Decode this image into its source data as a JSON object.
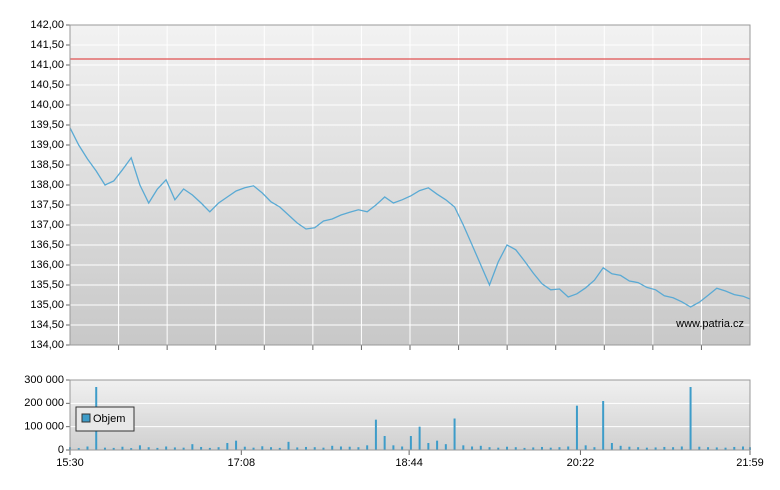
{
  "chart_data": [
    {
      "type": "line",
      "watermark": "www.patria.cz",
      "reference_line": {
        "value": 141.15,
        "color": "#e05050"
      },
      "x": [
        "15:30",
        "15:35",
        "15:40",
        "15:45",
        "15:50",
        "15:55",
        "16:00",
        "16:05",
        "16:10",
        "16:15",
        "16:20",
        "16:25",
        "16:30",
        "16:35",
        "16:40",
        "16:45",
        "16:50",
        "16:55",
        "17:00",
        "17:05",
        "17:10",
        "17:15",
        "17:20",
        "17:25",
        "17:30",
        "17:35",
        "17:40",
        "17:45",
        "17:50",
        "17:55",
        "18:00",
        "18:05",
        "18:10",
        "18:15",
        "18:20",
        "18:25",
        "18:30",
        "18:35",
        "18:40",
        "18:45",
        "18:50",
        "18:55",
        "19:00",
        "19:05",
        "19:10",
        "19:15",
        "19:20",
        "19:25",
        "19:30",
        "19:35",
        "19:40",
        "19:45",
        "19:50",
        "19:55",
        "20:00",
        "20:05",
        "20:10",
        "20:15",
        "20:20",
        "20:25",
        "20:30",
        "20:35",
        "20:40",
        "20:45",
        "20:50",
        "20:55",
        "21:00",
        "21:05",
        "21:10",
        "21:15",
        "21:20",
        "21:25",
        "21:30",
        "21:35",
        "21:40",
        "21:45",
        "21:50",
        "21:55",
        "21:59"
      ],
      "series": [
        {
          "color": "#5aaad4",
          "values": [
            139.43,
            139.0,
            138.65,
            138.35,
            138.0,
            138.1,
            138.38,
            138.68,
            138.0,
            137.55,
            137.9,
            138.13,
            137.63,
            137.9,
            137.75,
            137.55,
            137.33,
            137.55,
            137.7,
            137.85,
            137.93,
            137.98,
            137.8,
            137.58,
            137.45,
            137.25,
            137.05,
            136.9,
            136.93,
            137.1,
            137.15,
            137.25,
            137.32,
            137.38,
            137.33,
            137.5,
            137.7,
            137.55,
            137.63,
            137.73,
            137.86,
            137.93,
            137.77,
            137.63,
            137.45,
            137.0,
            136.5,
            136.0,
            135.5,
            136.08,
            136.5,
            136.38,
            136.1,
            135.8,
            135.53,
            135.38,
            135.4,
            135.2,
            135.28,
            135.43,
            135.62,
            135.93,
            135.78,
            135.74,
            135.6,
            135.56,
            135.44,
            135.38,
            135.23,
            135.18,
            135.08,
            134.95,
            135.07,
            135.24,
            135.42,
            135.35,
            135.26,
            135.22,
            135.15
          ]
        }
      ],
      "xlim": [
        "15:30",
        "21:59"
      ],
      "ylim": [
        134,
        142
      ],
      "yticks": [
        {
          "value": 134,
          "label": "134,00"
        },
        {
          "value": 134.5,
          "label": "134,50"
        },
        {
          "value": 135,
          "label": "135,00"
        },
        {
          "value": 135.5,
          "label": "135,50"
        },
        {
          "value": 136,
          "label": "136,00"
        },
        {
          "value": 136.5,
          "label": "136,50"
        },
        {
          "value": 137,
          "label": "137,00"
        },
        {
          "value": 137.5,
          "label": "137,50"
        },
        {
          "value": 138,
          "label": "138,00"
        },
        {
          "value": 138.5,
          "label": "138,50"
        },
        {
          "value": 139,
          "label": "139,00"
        },
        {
          "value": 139.5,
          "label": "139,50"
        },
        {
          "value": 140,
          "label": "140,00"
        },
        {
          "value": 140.5,
          "label": "140,50"
        },
        {
          "value": 141,
          "label": "141,00"
        },
        {
          "value": 141.5,
          "label": "141,50"
        },
        {
          "value": 142,
          "label": "142,00"
        }
      ],
      "grid": true
    },
    {
      "type": "bar",
      "x": [
        "15:30",
        "15:35",
        "15:40",
        "15:45",
        "15:50",
        "15:55",
        "16:00",
        "16:05",
        "16:10",
        "16:15",
        "16:20",
        "16:25",
        "16:30",
        "16:35",
        "16:40",
        "16:45",
        "16:50",
        "16:55",
        "17:00",
        "17:05",
        "17:10",
        "17:15",
        "17:20",
        "17:25",
        "17:30",
        "17:35",
        "17:40",
        "17:45",
        "17:50",
        "17:55",
        "18:00",
        "18:05",
        "18:10",
        "18:15",
        "18:20",
        "18:25",
        "18:30",
        "18:35",
        "18:40",
        "18:45",
        "18:50",
        "18:55",
        "19:00",
        "19:05",
        "19:10",
        "19:15",
        "19:20",
        "19:25",
        "19:30",
        "19:35",
        "19:40",
        "19:45",
        "19:50",
        "19:55",
        "20:00",
        "20:05",
        "20:10",
        "20:15",
        "20:20",
        "20:25",
        "20:30",
        "20:35",
        "20:40",
        "20:45",
        "20:50",
        "20:55",
        "21:00",
        "21:05",
        "21:10",
        "21:15",
        "21:20",
        "21:25",
        "21:30",
        "21:35",
        "21:40",
        "21:45",
        "21:50",
        "21:55",
        "21:59"
      ],
      "series": [
        {
          "name": "Objem",
          "color": "#3d9cc9",
          "values": [
            12000,
            8000,
            15000,
            270000,
            10000,
            9000,
            14000,
            8000,
            20000,
            12000,
            9000,
            15000,
            11000,
            10000,
            25000,
            13000,
            9000,
            12000,
            30000,
            40000,
            14000,
            10000,
            16000,
            12000,
            9000,
            35000,
            11000,
            13000,
            12000,
            10000,
            18000,
            15000,
            14000,
            12000,
            20000,
            130000,
            60000,
            20000,
            15000,
            60000,
            100000,
            30000,
            40000,
            25000,
            135000,
            20000,
            15000,
            18000,
            12000,
            10000,
            14000,
            12000,
            9000,
            11000,
            13000,
            10000,
            12000,
            15000,
            190000,
            20000,
            12000,
            210000,
            30000,
            18000,
            14000,
            12000,
            10000,
            11000,
            13000,
            12000,
            15000,
            270000,
            14000,
            12000,
            11000,
            10000,
            13000,
            15000,
            12000
          ]
        }
      ],
      "xlim": [
        "15:30",
        "21:59"
      ],
      "xticks": [
        "15:30",
        "17:08",
        "18:44",
        "20:22",
        "21:59"
      ],
      "ylim": [
        0,
        300000
      ],
      "yticks": [
        0,
        {
          "value": 100000,
          "label": "100 000"
        },
        {
          "value": 200000,
          "label": "200 000"
        },
        {
          "value": 300000,
          "label": "300 000"
        }
      ],
      "grid": true,
      "legend": "upper-left"
    }
  ]
}
